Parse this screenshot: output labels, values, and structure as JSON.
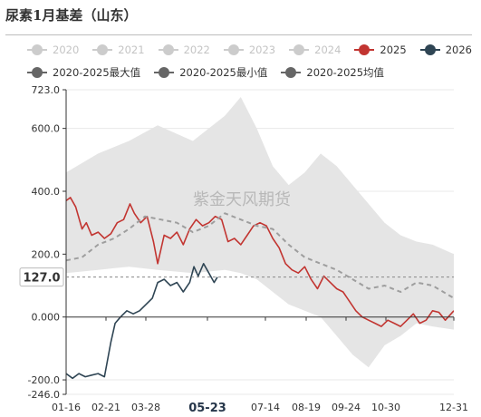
{
  "header": {
    "title": "尿素1月基差（山东）"
  },
  "legend": [
    [
      {
        "label": "2020",
        "color": "#cccccc",
        "dim": true
      },
      {
        "label": "2021",
        "color": "#cccccc",
        "dim": true
      },
      {
        "label": "2022",
        "color": "#cccccc",
        "dim": true
      },
      {
        "label": "2023",
        "color": "#cccccc",
        "dim": true
      },
      {
        "label": "2024",
        "color": "#cccccc",
        "dim": true
      },
      {
        "label": "2025",
        "color": "#c23531",
        "dim": false
      },
      {
        "label": "2026",
        "color": "#2f4554",
        "dim": false
      }
    ],
    [
      {
        "label": "2020-2025最大值",
        "color": "#666666",
        "dim": false
      },
      {
        "label": "2020-2025最小值",
        "color": "#666666",
        "dim": false
      },
      {
        "label": "2020-2025均值",
        "color": "#666666",
        "dim": false
      }
    ]
  ],
  "watermark": "紫金天风期货",
  "pointer": {
    "y_value_label": "127.0",
    "y_value": 127,
    "x_value_label": "05-23",
    "x_value": "05-23"
  },
  "chart_data": {
    "type": "line",
    "title": "尿素1月基差（山东）",
    "x_ticks": [
      "01-16",
      "02-21",
      "03-28",
      "05-23",
      "07-14",
      "08-19",
      "09-24",
      "10-30",
      "12-31"
    ],
    "y_ticks": [
      "723.0",
      "600.0",
      "400.0",
      "200.0",
      "0.000",
      "-200.0",
      "-246.0"
    ],
    "y_tick_values": [
      723,
      600,
      400,
      200,
      0,
      -200,
      -246
    ],
    "ylim": [
      -246,
      723
    ],
    "grid": true,
    "legend_position": "top",
    "series": [
      {
        "name": "2025",
        "color": "#c23531",
        "points": [
          [
            "01-01",
            370
          ],
          [
            "01-05",
            380
          ],
          [
            "01-10",
            350
          ],
          [
            "01-16",
            280
          ],
          [
            "01-20",
            300
          ],
          [
            "01-25",
            260
          ],
          [
            "01-31",
            270
          ],
          [
            "02-06",
            250
          ],
          [
            "02-12",
            265
          ],
          [
            "02-18",
            300
          ],
          [
            "02-24",
            310
          ],
          [
            "03-02",
            360
          ],
          [
            "03-06",
            330
          ],
          [
            "03-12",
            300
          ],
          [
            "03-18",
            320
          ],
          [
            "03-24",
            240
          ],
          [
            "03-28",
            170
          ],
          [
            "04-03",
            260
          ],
          [
            "04-09",
            250
          ],
          [
            "04-15",
            270
          ],
          [
            "04-21",
            230
          ],
          [
            "04-27",
            280
          ],
          [
            "05-03",
            310
          ],
          [
            "05-09",
            290
          ],
          [
            "05-15",
            300
          ],
          [
            "05-21",
            320
          ],
          [
            "05-27",
            310
          ],
          [
            "06-02",
            240
          ],
          [
            "06-08",
            250
          ],
          [
            "06-14",
            230
          ],
          [
            "06-20",
            260
          ],
          [
            "06-26",
            290
          ],
          [
            "07-02",
            300
          ],
          [
            "07-08",
            290
          ],
          [
            "07-14",
            250
          ],
          [
            "07-20",
            220
          ],
          [
            "07-26",
            170
          ],
          [
            "08-01",
            150
          ],
          [
            "08-07",
            140
          ],
          [
            "08-13",
            160
          ],
          [
            "08-19",
            120
          ],
          [
            "08-25",
            90
          ],
          [
            "08-31",
            130
          ],
          [
            "09-06",
            110
          ],
          [
            "09-12",
            90
          ],
          [
            "09-18",
            80
          ],
          [
            "09-24",
            50
          ],
          [
            "09-30",
            20
          ],
          [
            "10-06",
            0
          ],
          [
            "10-12",
            -10
          ],
          [
            "10-18",
            -20
          ],
          [
            "10-24",
            -30
          ],
          [
            "10-30",
            -10
          ],
          [
            "11-05",
            -20
          ],
          [
            "11-11",
            -30
          ],
          [
            "11-17",
            -10
          ],
          [
            "11-23",
            10
          ],
          [
            "11-29",
            -20
          ],
          [
            "12-05",
            -10
          ],
          [
            "12-11",
            20
          ],
          [
            "12-17",
            15
          ],
          [
            "12-23",
            -10
          ],
          [
            "12-31",
            20
          ]
        ]
      },
      {
        "name": "2026",
        "color": "#2f4554",
        "points": [
          [
            "01-01",
            -180
          ],
          [
            "01-07",
            -195
          ],
          [
            "01-13",
            -180
          ],
          [
            "01-19",
            -190
          ],
          [
            "01-25",
            -185
          ],
          [
            "01-31",
            -180
          ],
          [
            "02-06",
            -190
          ],
          [
            "02-12",
            -80
          ],
          [
            "02-16",
            -20
          ],
          [
            "02-21",
            0
          ],
          [
            "02-27",
            20
          ],
          [
            "03-05",
            10
          ],
          [
            "03-11",
            20
          ],
          [
            "03-17",
            40
          ],
          [
            "03-23",
            60
          ],
          [
            "03-28",
            110
          ],
          [
            "04-03",
            120
          ],
          [
            "04-09",
            100
          ],
          [
            "04-15",
            110
          ],
          [
            "04-21",
            80
          ],
          [
            "04-27",
            110
          ],
          [
            "05-01",
            160
          ],
          [
            "05-05",
            130
          ],
          [
            "05-10",
            170
          ],
          [
            "05-15",
            140
          ],
          [
            "05-20",
            110
          ],
          [
            "05-23",
            127
          ]
        ]
      },
      {
        "name": "2020-2025均值",
        "color": "#9e9e9e",
        "dashed": true,
        "points": [
          [
            "01-01",
            180
          ],
          [
            "01-16",
            190
          ],
          [
            "01-31",
            230
          ],
          [
            "02-15",
            250
          ],
          [
            "03-01",
            280
          ],
          [
            "03-16",
            320
          ],
          [
            "03-31",
            310
          ],
          [
            "04-15",
            300
          ],
          [
            "04-30",
            270
          ],
          [
            "05-15",
            290
          ],
          [
            "05-30",
            330
          ],
          [
            "06-14",
            310
          ],
          [
            "06-29",
            290
          ],
          [
            "07-14",
            280
          ],
          [
            "07-29",
            230
          ],
          [
            "08-13",
            190
          ],
          [
            "08-28",
            170
          ],
          [
            "09-12",
            150
          ],
          [
            "09-27",
            120
          ],
          [
            "10-12",
            90
          ],
          [
            "10-27",
            100
          ],
          [
            "11-11",
            80
          ],
          [
            "11-26",
            110
          ],
          [
            "12-11",
            100
          ],
          [
            "12-31",
            60
          ]
        ]
      }
    ],
    "band": {
      "name": "2020-2025最大值 / 2020-2025最小值",
      "max_points": [
        [
          "01-01",
          460
        ],
        [
          "01-31",
          520
        ],
        [
          "03-01",
          560
        ],
        [
          "03-28",
          610
        ],
        [
          "04-30",
          560
        ],
        [
          "05-30",
          640
        ],
        [
          "06-14",
          700
        ],
        [
          "06-29",
          600
        ],
        [
          "07-14",
          480
        ],
        [
          "07-29",
          420
        ],
        [
          "08-13",
          460
        ],
        [
          "08-28",
          520
        ],
        [
          "09-12",
          480
        ],
        [
          "09-27",
          420
        ],
        [
          "10-12",
          360
        ],
        [
          "10-27",
          300
        ],
        [
          "11-11",
          260
        ],
        [
          "11-26",
          240
        ],
        [
          "12-11",
          230
        ],
        [
          "12-31",
          200
        ]
      ],
      "min_points": [
        [
          "01-01",
          140
        ],
        [
          "01-31",
          150
        ],
        [
          "03-01",
          160
        ],
        [
          "03-28",
          150
        ],
        [
          "04-30",
          140
        ],
        [
          "05-30",
          150
        ],
        [
          "06-14",
          140
        ],
        [
          "06-29",
          120
        ],
        [
          "07-14",
          80
        ],
        [
          "07-29",
          40
        ],
        [
          "08-13",
          20
        ],
        [
          "08-28",
          0
        ],
        [
          "09-12",
          -60
        ],
        [
          "09-27",
          -120
        ],
        [
          "10-12",
          -160
        ],
        [
          "10-27",
          -90
        ],
        [
          "11-11",
          -60
        ],
        [
          "11-26",
          -20
        ],
        [
          "12-11",
          -30
        ],
        [
          "12-31",
          -40
        ]
      ]
    }
  }
}
